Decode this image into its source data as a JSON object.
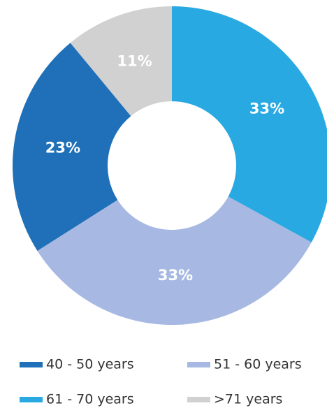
{
  "chart_data": {
    "type": "donut",
    "categories": [
      "40 - 50 years",
      "51 - 60 years",
      "61 - 70 years",
      ">71 years"
    ],
    "values": [
      23,
      33,
      33,
      11
    ],
    "value_labels": [
      "23%",
      "33%",
      "33%",
      "11%"
    ],
    "colors": [
      "#1f70b8",
      "#a7b9e2",
      "#29a9e1",
      "#d1d1d1"
    ]
  }
}
